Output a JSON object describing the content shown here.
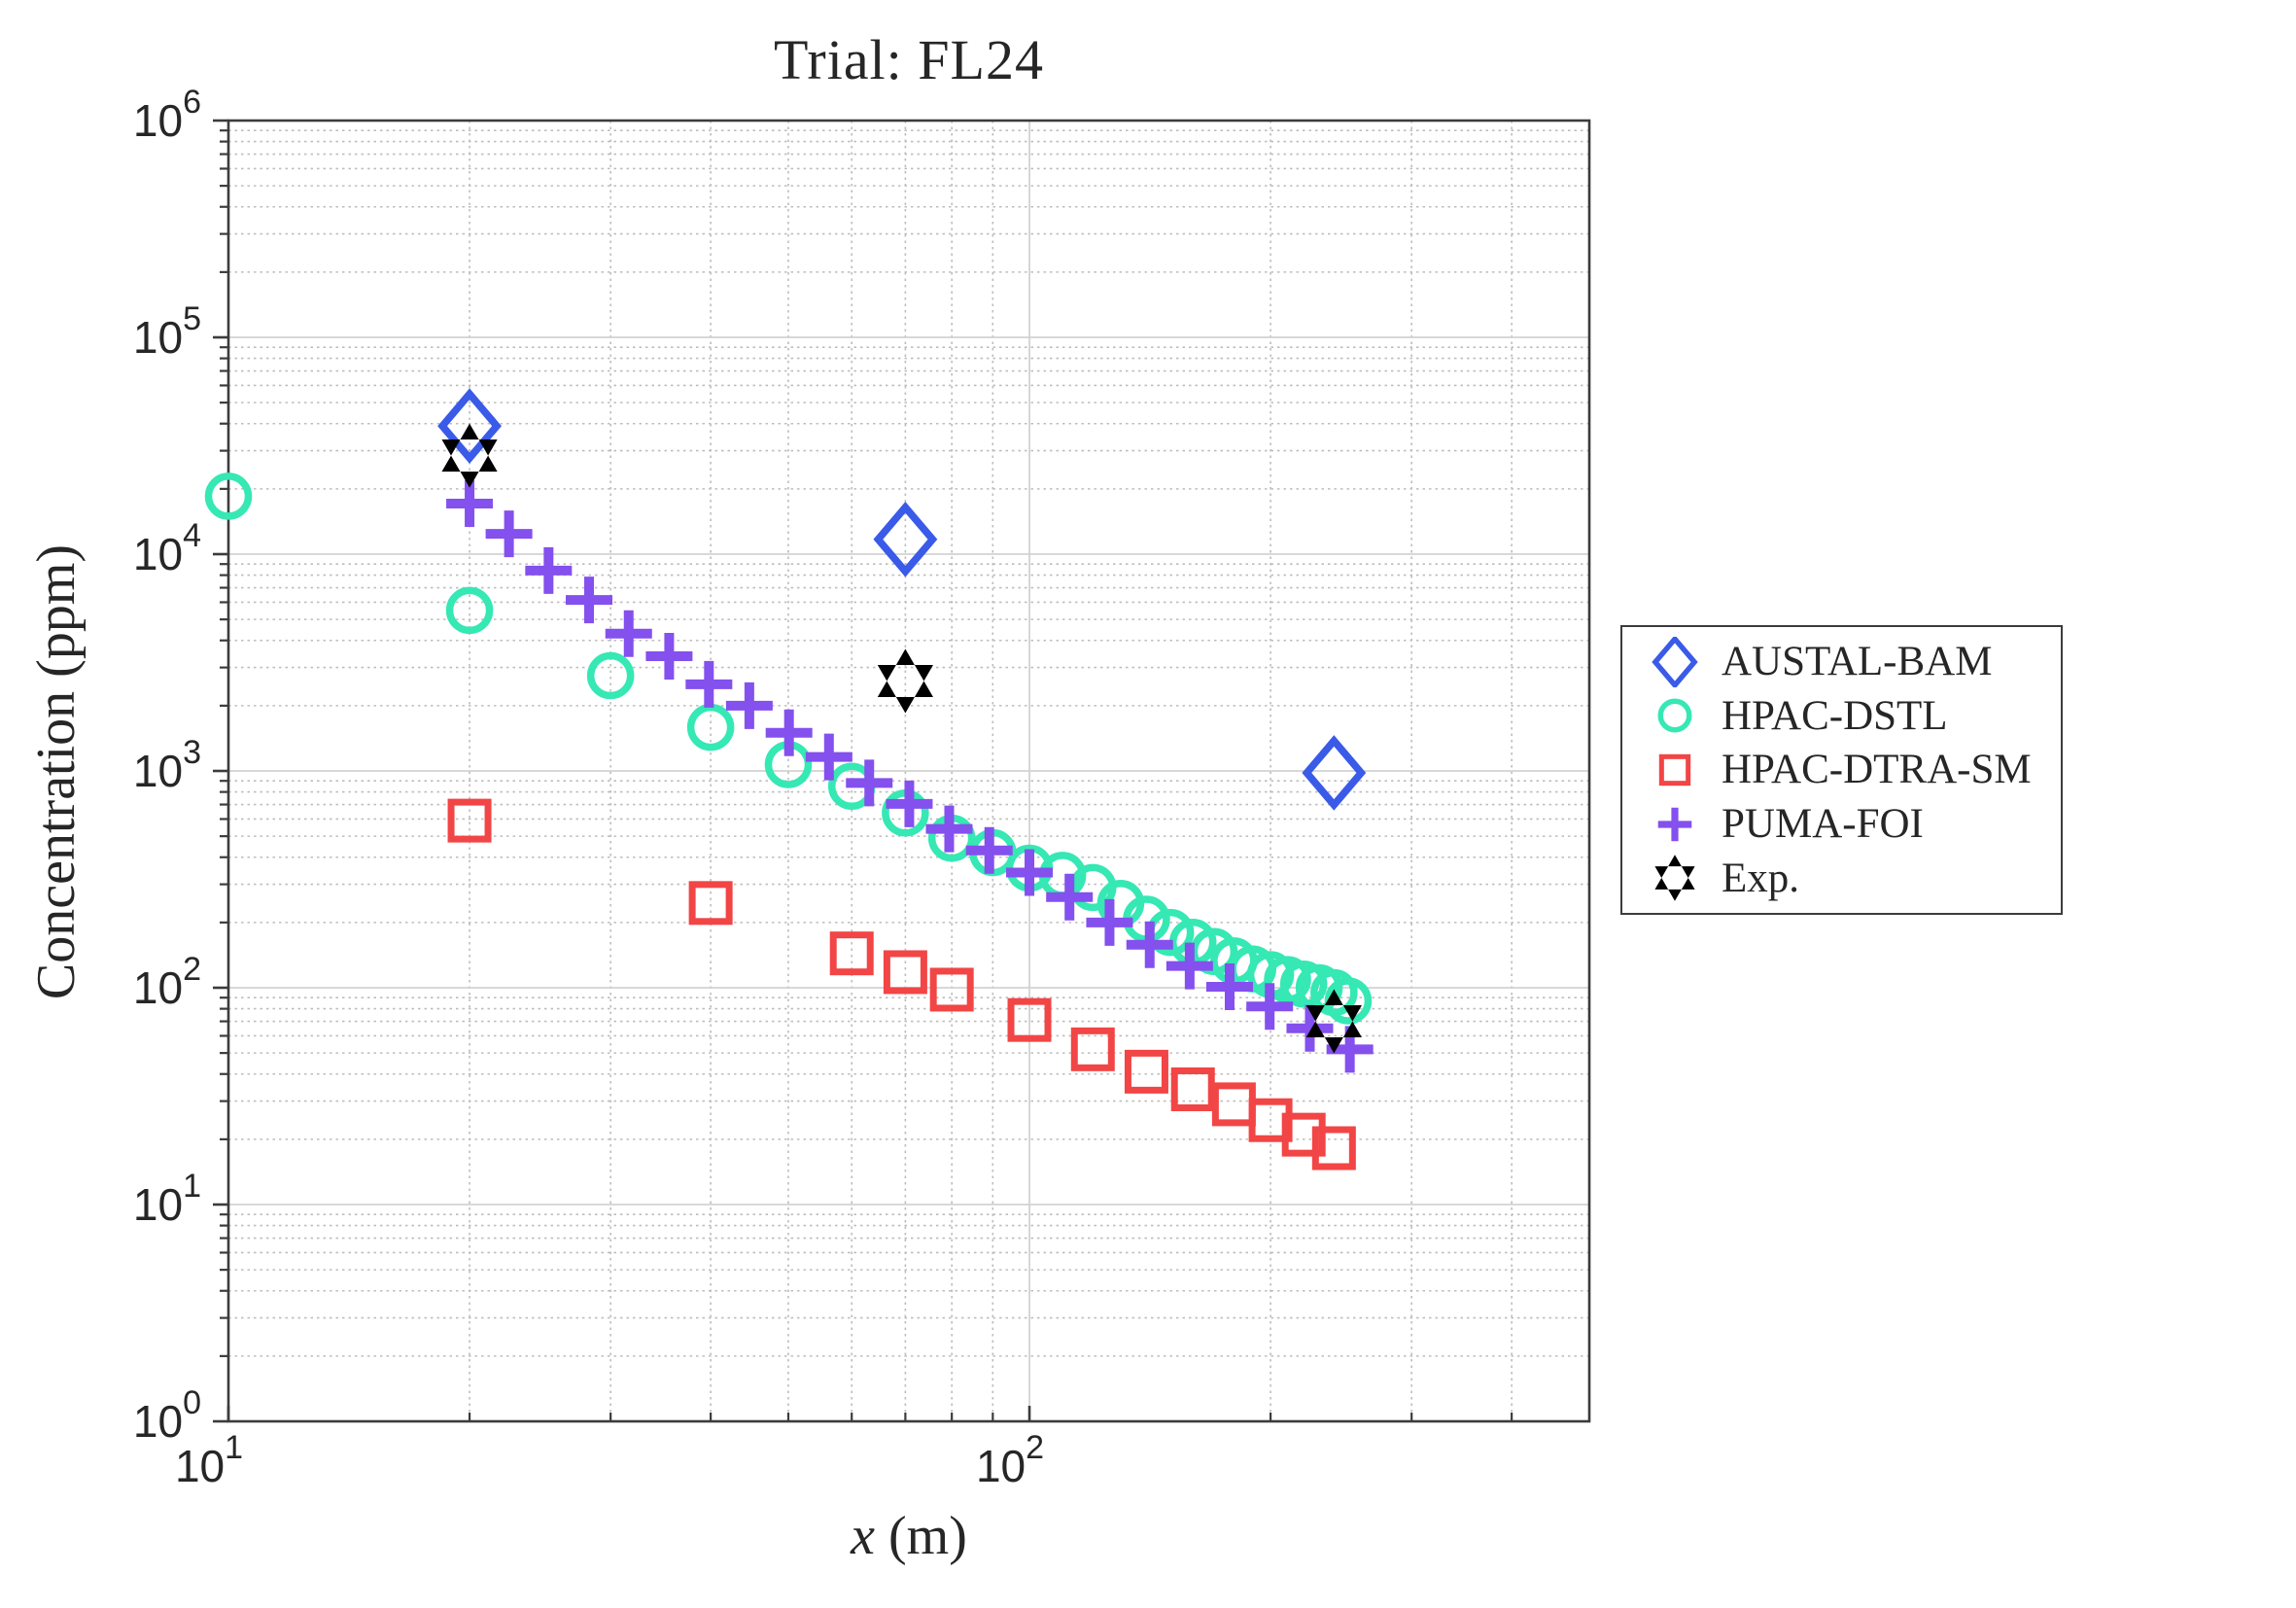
{
  "title": "Trial: FL24",
  "xlabel_var": "x",
  "xlabel_unit": "(m)",
  "ylabel": "Concentration (ppm)",
  "colors": {
    "axis": "#3c3c3c",
    "tick_text": "#262626",
    "major_grid": "#d2d2d2",
    "minor_grid": "#bdbdbd",
    "background": "#ffffff"
  },
  "chart_data": {
    "type": "scatter",
    "title": "Trial: FL24",
    "xlabel": "x (m)",
    "ylabel": "Concentration (ppm)",
    "xscale": "log",
    "yscale": "log",
    "xlim": [
      10,
      500
    ],
    "ylim": [
      1,
      1000000
    ],
    "x_tick_exponents": [
      1,
      2
    ],
    "y_tick_exponents": [
      0,
      1,
      2,
      3,
      4,
      5,
      6
    ],
    "grid": "major solid, minor dotted, log decades",
    "legend_position": "outside-right",
    "series": [
      {
        "name": "AUSTAL-BAM",
        "marker": "diamond",
        "color": "#3a5ae8",
        "filled": false,
        "points": [
          [
            20,
            39000
          ],
          [
            70,
            11700
          ],
          [
            240,
            980
          ]
        ]
      },
      {
        "name": "HPAC-DSTL",
        "marker": "circle",
        "color": "#35e8b4",
        "filled": false,
        "points": [
          [
            10,
            18500
          ],
          [
            20,
            5500
          ],
          [
            30,
            2750
          ],
          [
            40,
            1590
          ],
          [
            50,
            1070
          ],
          [
            60,
            850
          ],
          [
            70,
            640
          ],
          [
            80,
            490
          ],
          [
            90,
            420
          ],
          [
            100,
            356
          ],
          [
            110,
            330
          ],
          [
            120,
            290
          ],
          [
            130,
            245
          ],
          [
            140,
            207
          ],
          [
            150,
            180
          ],
          [
            160,
            162
          ],
          [
            170,
            147
          ],
          [
            180,
            133
          ],
          [
            190,
            122
          ],
          [
            200,
            115
          ],
          [
            210,
            109
          ],
          [
            220,
            104
          ],
          [
            230,
            100
          ],
          [
            240,
            95
          ],
          [
            250,
            87
          ]
        ]
      },
      {
        "name": "HPAC-DTRA-SM",
        "marker": "square",
        "color": "#f24545",
        "filled": false,
        "points": [
          [
            20,
            590
          ],
          [
            40,
            246
          ],
          [
            60,
            144
          ],
          [
            70,
            118
          ],
          [
            80,
            98
          ],
          [
            100,
            71
          ],
          [
            120,
            52
          ],
          [
            140,
            41
          ],
          [
            160,
            34
          ],
          [
            180,
            29
          ],
          [
            200,
            24.5
          ],
          [
            220,
            21
          ],
          [
            240,
            18.2
          ]
        ]
      },
      {
        "name": "PUMA-FOI",
        "marker": "plus",
        "color": "#8450ee",
        "filled": false,
        "points": [
          [
            20,
            17100
          ],
          [
            22.4,
            12400
          ],
          [
            25.1,
            8400
          ],
          [
            28.2,
            6150
          ],
          [
            31.6,
            4300
          ],
          [
            35.5,
            3380
          ],
          [
            39.8,
            2510
          ],
          [
            44.7,
            2000
          ],
          [
            50.1,
            1500
          ],
          [
            56.2,
            1160
          ],
          [
            63.1,
            880
          ],
          [
            70.8,
            705
          ],
          [
            79.4,
            540
          ],
          [
            89.1,
            430
          ],
          [
            100,
            340
          ],
          [
            112.2,
            262
          ],
          [
            125.9,
            200
          ],
          [
            141.3,
            158
          ],
          [
            158.5,
            126
          ],
          [
            177.8,
            101
          ],
          [
            199.5,
            82
          ],
          [
            223.9,
            65
          ],
          [
            251.2,
            52
          ]
        ]
      },
      {
        "name": "Exp.",
        "marker": "hexagram",
        "color": "#000000",
        "filled": true,
        "points": [
          [
            20,
            28500
          ],
          [
            70,
            2600
          ],
          [
            240,
            70
          ]
        ]
      }
    ]
  }
}
